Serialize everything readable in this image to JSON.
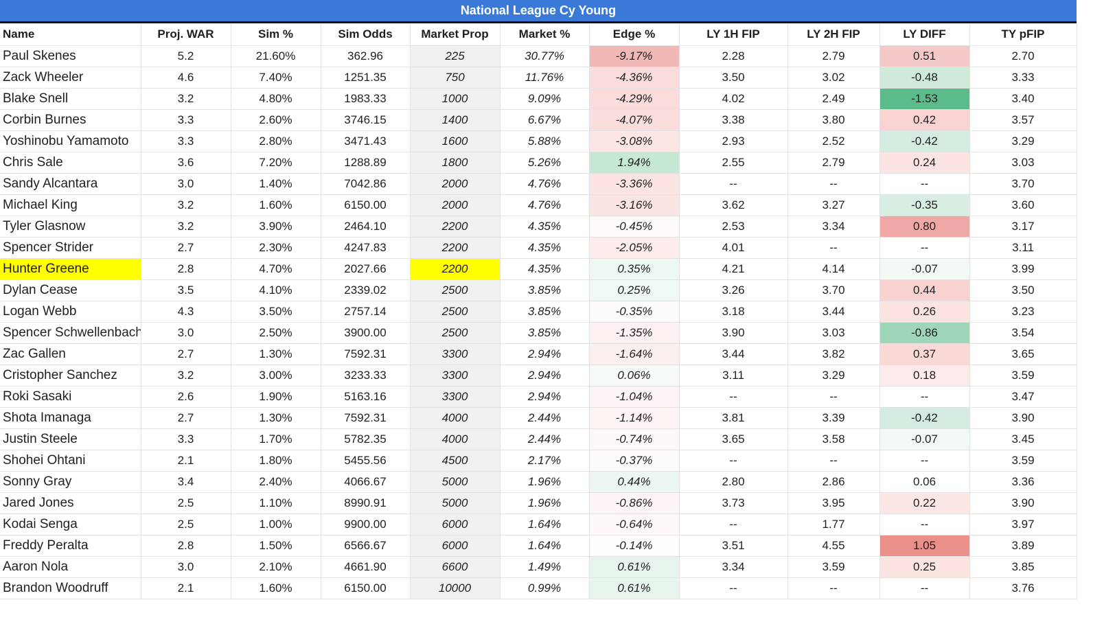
{
  "sheet": {
    "title": "National League Cy Young",
    "columns": [
      "Name",
      "Proj. WAR",
      "Sim %",
      "Sim Odds",
      "Market Prop",
      "Market %",
      "Edge %",
      "LY 1H FIP",
      "LY 2H FIP",
      "LY DIFF",
      "TY pFIP"
    ],
    "highlight_color": "#ffff00",
    "rows": [
      {
        "name": "Paul Skenes",
        "war": "5.2",
        "sim": "21.60%",
        "odds": "362.96",
        "prop": "225",
        "mkt": "30.77%",
        "edge": "-9.17%",
        "edge_color": "#f2b8b6",
        "fip1": "2.28",
        "fip2": "2.79",
        "diff": "0.51",
        "diff_color": "#f5c9c7",
        "pfip": "2.70",
        "highlight": false
      },
      {
        "name": "Zack Wheeler",
        "war": "4.6",
        "sim": "7.40%",
        "odds": "1251.35",
        "prop": "750",
        "mkt": "11.76%",
        "edge": "-4.36%",
        "edge_color": "#f9dcdb",
        "fip1": "3.50",
        "fip2": "3.02",
        "diff": "-0.48",
        "diff_color": "#cfeadb",
        "pfip": "3.33",
        "highlight": false
      },
      {
        "name": "Blake Snell",
        "war": "3.2",
        "sim": "4.80%",
        "odds": "1983.33",
        "prop": "1000",
        "mkt": "9.09%",
        "edge": "-4.29%",
        "edge_color": "#f9dcdb",
        "fip1": "4.02",
        "fip2": "2.49",
        "diff": "-1.53",
        "diff_color": "#5cbb8b",
        "pfip": "3.40",
        "highlight": false
      },
      {
        "name": "Corbin Burnes",
        "war": "3.3",
        "sim": "2.60%",
        "odds": "3746.15",
        "prop": "1400",
        "mkt": "6.67%",
        "edge": "-4.07%",
        "edge_color": "#f9dedd",
        "fip1": "3.38",
        "fip2": "3.80",
        "diff": "0.42",
        "diff_color": "#f8d3d1",
        "pfip": "3.57",
        "highlight": false
      },
      {
        "name": "Yoshinobu Yamamoto",
        "war": "3.3",
        "sim": "2.80%",
        "odds": "3471.43",
        "prop": "1600",
        "mkt": "5.88%",
        "edge": "-3.08%",
        "edge_color": "#fbe6e5",
        "fip1": "2.93",
        "fip2": "2.52",
        "diff": "-0.42",
        "diff_color": "#d3ecdf",
        "pfip": "3.29",
        "highlight": false
      },
      {
        "name": "Chris Sale",
        "war": "3.6",
        "sim": "7.20%",
        "odds": "1288.89",
        "prop": "1800",
        "mkt": "5.26%",
        "edge": "1.94%",
        "edge_color": "#c6e8d5",
        "fip1": "2.55",
        "fip2": "2.79",
        "diff": "0.24",
        "diff_color": "#fbe4e3",
        "pfip": "3.03",
        "highlight": false
      },
      {
        "name": "Sandy Alcantara",
        "war": "3.0",
        "sim": "1.40%",
        "odds": "7042.86",
        "prop": "2000",
        "mkt": "4.76%",
        "edge": "-3.36%",
        "edge_color": "#fbe4e3",
        "fip1": "--",
        "fip2": "--",
        "diff": "--",
        "diff_color": "#ffffff",
        "pfip": "3.70",
        "highlight": false
      },
      {
        "name": "Michael King",
        "war": "3.2",
        "sim": "1.60%",
        "odds": "6150.00",
        "prop": "2000",
        "mkt": "4.76%",
        "edge": "-3.16%",
        "edge_color": "#fbe5e4",
        "fip1": "3.62",
        "fip2": "3.27",
        "diff": "-0.35",
        "diff_color": "#d8eee2",
        "pfip": "3.60",
        "highlight": false
      },
      {
        "name": "Tyler Glasnow",
        "war": "3.2",
        "sim": "3.90%",
        "odds": "2464.10",
        "prop": "2200",
        "mkt": "4.35%",
        "edge": "-0.45%",
        "edge_color": "#fefafa",
        "fip1": "2.53",
        "fip2": "3.34",
        "diff": "0.80",
        "diff_color": "#efa8a5",
        "pfip": "3.17",
        "highlight": false
      },
      {
        "name": "Spencer Strider",
        "war": "2.7",
        "sim": "2.30%",
        "odds": "4247.83",
        "prop": "2200",
        "mkt": "4.35%",
        "edge": "-2.05%",
        "edge_color": "#fcedec",
        "fip1": "4.01",
        "fip2": "--",
        "diff": "--",
        "diff_color": "#ffffff",
        "pfip": "3.11",
        "highlight": false
      },
      {
        "name": "Hunter Greene",
        "war": "2.8",
        "sim": "4.70%",
        "odds": "2027.66",
        "prop": "2200",
        "mkt": "4.35%",
        "edge": "0.35%",
        "edge_color": "#eef8f2",
        "fip1": "4.21",
        "fip2": "4.14",
        "diff": "-0.07",
        "diff_color": "#f2f9f5",
        "pfip": "3.99",
        "highlight": true
      },
      {
        "name": "Dylan Cease",
        "war": "3.5",
        "sim": "4.10%",
        "odds": "2339.02",
        "prop": "2500",
        "mkt": "3.85%",
        "edge": "0.25%",
        "edge_color": "#f0f9f4",
        "fip1": "3.26",
        "fip2": "3.70",
        "diff": "0.44",
        "diff_color": "#f8d2d0",
        "pfip": "3.50",
        "highlight": false
      },
      {
        "name": "Logan Webb",
        "war": "4.3",
        "sim": "3.50%",
        "odds": "2757.14",
        "prop": "2500",
        "mkt": "3.85%",
        "edge": "-0.35%",
        "edge_color": "#fefbfb",
        "fip1": "3.18",
        "fip2": "3.44",
        "diff": "0.26",
        "diff_color": "#fbe3e2",
        "pfip": "3.23",
        "highlight": false
      },
      {
        "name": "Spencer Schwellenbach",
        "war": "3.0",
        "sim": "2.50%",
        "odds": "3900.00",
        "prop": "2500",
        "mkt": "3.85%",
        "edge": "-1.35%",
        "edge_color": "#fdf2f1",
        "fip1": "3.90",
        "fip2": "3.03",
        "diff": "-0.86",
        "diff_color": "#9fd6ba",
        "pfip": "3.54",
        "highlight": false
      },
      {
        "name": "Zac Gallen",
        "war": "2.7",
        "sim": "1.30%",
        "odds": "7592.31",
        "prop": "3300",
        "mkt": "2.94%",
        "edge": "-1.64%",
        "edge_color": "#fcf0ef",
        "fip1": "3.44",
        "fip2": "3.82",
        "diff": "0.37",
        "diff_color": "#f9d8d6",
        "pfip": "3.65",
        "highlight": false
      },
      {
        "name": "Cristopher Sanchez",
        "war": "3.2",
        "sim": "3.00%",
        "odds": "3233.33",
        "prop": "3300",
        "mkt": "2.94%",
        "edge": "0.06%",
        "edge_color": "#f6fbf8",
        "fip1": "3.11",
        "fip2": "3.29",
        "diff": "0.18",
        "diff_color": "#fcebea",
        "pfip": "3.59",
        "highlight": false
      },
      {
        "name": "Roki Sasaki",
        "war": "2.6",
        "sim": "1.90%",
        "odds": "5163.16",
        "prop": "3300",
        "mkt": "2.94%",
        "edge": "-1.04%",
        "edge_color": "#fdf5f5",
        "fip1": "--",
        "fip2": "--",
        "diff": "--",
        "diff_color": "#ffffff",
        "pfip": "3.47",
        "highlight": false
      },
      {
        "name": "Shota Imanaga",
        "war": "2.7",
        "sim": "1.30%",
        "odds": "7592.31",
        "prop": "4000",
        "mkt": "2.44%",
        "edge": "-1.14%",
        "edge_color": "#fdf4f4",
        "fip1": "3.81",
        "fip2": "3.39",
        "diff": "-0.42",
        "diff_color": "#d3ecdf",
        "pfip": "3.90",
        "highlight": false
      },
      {
        "name": "Justin Steele",
        "war": "3.3",
        "sim": "1.70%",
        "odds": "5782.35",
        "prop": "4000",
        "mkt": "2.44%",
        "edge": "-0.74%",
        "edge_color": "#fef7f7",
        "fip1": "3.65",
        "fip2": "3.58",
        "diff": "-0.07",
        "diff_color": "#f2f9f5",
        "pfip": "3.45",
        "highlight": false
      },
      {
        "name": "Shohei Ohtani",
        "war": "2.1",
        "sim": "1.80%",
        "odds": "5455.56",
        "prop": "4500",
        "mkt": "2.17%",
        "edge": "-0.37%",
        "edge_color": "#fefbfb",
        "fip1": "--",
        "fip2": "--",
        "diff": "--",
        "diff_color": "#ffffff",
        "pfip": "3.59",
        "highlight": false
      },
      {
        "name": "Sonny Gray",
        "war": "3.4",
        "sim": "2.40%",
        "odds": "4066.67",
        "prop": "5000",
        "mkt": "1.96%",
        "edge": "0.44%",
        "edge_color": "#ecf7f1",
        "fip1": "2.80",
        "fip2": "2.86",
        "diff": "0.06",
        "diff_color": "#ffffff",
        "pfip": "3.36",
        "highlight": false
      },
      {
        "name": "Jared Jones",
        "war": "2.5",
        "sim": "1.10%",
        "odds": "8990.91",
        "prop": "5000",
        "mkt": "1.96%",
        "edge": "-0.86%",
        "edge_color": "#fef6f6",
        "fip1": "3.73",
        "fip2": "3.95",
        "diff": "0.22",
        "diff_color": "#fce7e6",
        "pfip": "3.90",
        "highlight": false
      },
      {
        "name": "Kodai Senga",
        "war": "2.5",
        "sim": "1.00%",
        "odds": "9900.00",
        "prop": "6000",
        "mkt": "1.64%",
        "edge": "-0.64%",
        "edge_color": "#fef8f8",
        "fip1": "--",
        "fip2": "1.77",
        "diff": "--",
        "diff_color": "#ffffff",
        "pfip": "3.97",
        "highlight": false
      },
      {
        "name": "Freddy Peralta",
        "war": "2.8",
        "sim": "1.50%",
        "odds": "6566.67",
        "prop": "6000",
        "mkt": "1.64%",
        "edge": "-0.14%",
        "edge_color": "#fffdfd",
        "fip1": "3.51",
        "fip2": "4.55",
        "diff": "1.05",
        "diff_color": "#eb8f8b",
        "pfip": "3.89",
        "highlight": false
      },
      {
        "name": "Aaron Nola",
        "war": "3.0",
        "sim": "2.10%",
        "odds": "4661.90",
        "prop": "6600",
        "mkt": "1.49%",
        "edge": "0.61%",
        "edge_color": "#e7f5ed",
        "fip1": "3.34",
        "fip2": "3.59",
        "diff": "0.25",
        "diff_color": "#fce4e3",
        "pfip": "3.85",
        "highlight": false
      },
      {
        "name": "Brandon Woodruff",
        "war": "2.1",
        "sim": "1.60%",
        "odds": "6150.00",
        "prop": "10000",
        "mkt": "0.99%",
        "edge": "0.61%",
        "edge_color": "#e7f5ed",
        "fip1": "--",
        "fip2": "--",
        "diff": "--",
        "diff_color": "#ffffff",
        "pfip": "3.76",
        "highlight": false
      }
    ]
  }
}
